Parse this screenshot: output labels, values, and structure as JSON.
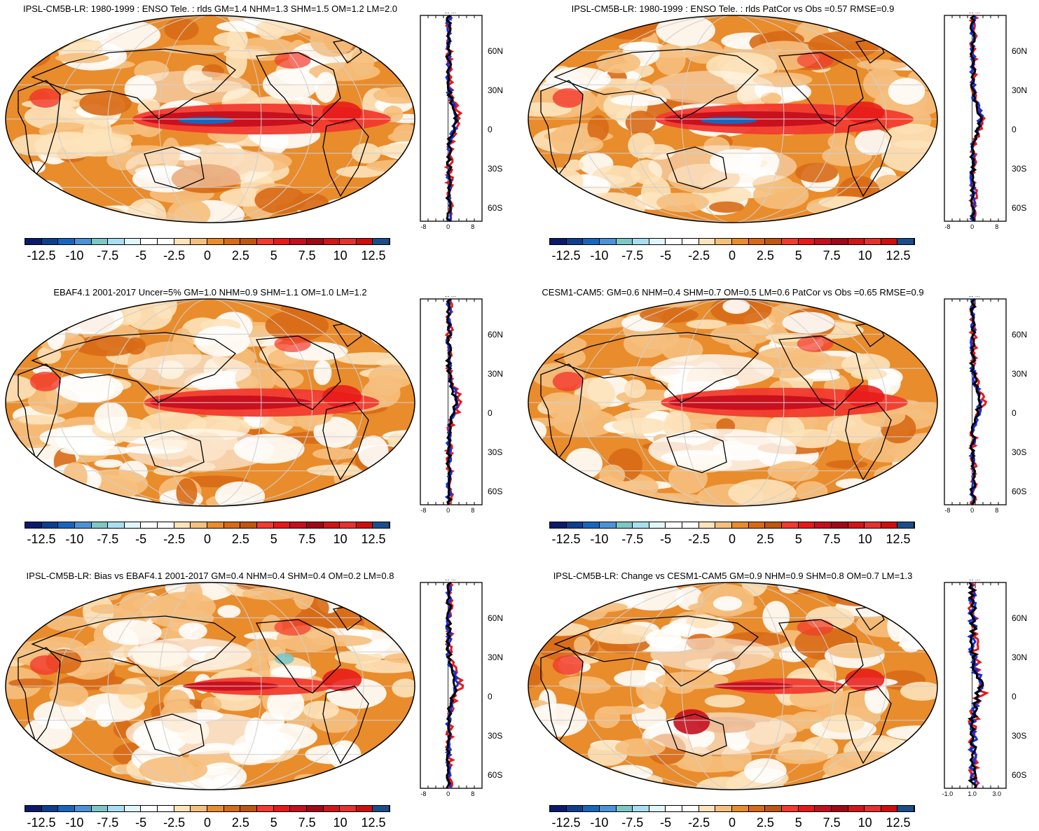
{
  "colorbar": {
    "colors": [
      "#0b1b6b",
      "#0d3f8f",
      "#1766bd",
      "#4b93d8",
      "#7ec7c7",
      "#a8dff0",
      "#e1f6fb",
      "#ffffff",
      "#ffffff",
      "#fde3bb",
      "#f6bf7d",
      "#e98c2c",
      "#d86a16",
      "#c05510",
      "#f23a2e",
      "#e81818",
      "#c50e1e",
      "#a00818",
      "#d11616",
      "#e53030",
      "#d00d0d",
      "#1b4d8a"
    ],
    "labels": [
      "-12.5",
      "-10",
      "-7.5",
      "-5",
      "-2.5",
      "0",
      "2.5",
      "5",
      "7.5",
      "10",
      "12.5"
    ]
  },
  "panels": [
    {
      "title": "IPSL-CM5B-LR: 1980-1999 : ENSO Tele. : rlds GM=1.4 NHM=1.3 SHM=1.5 OM=1.2 LM=2.0",
      "profile_unit": "W m⁻²",
      "profile_xticks": [
        "-8",
        "0",
        "8"
      ],
      "profile_yticks": [
        "60N",
        "30N",
        "0",
        "30S",
        "60S"
      ]
    },
    {
      "title": "IPSL-CM5B-LR: 1980-1999 : ENSO Tele. : rlds PatCor vs Obs =0.57 RMSE=0.9",
      "profile_unit": "W m⁻²",
      "profile_xticks": [
        "-8",
        "0",
        "8"
      ],
      "profile_yticks": [
        "60N",
        "30N",
        "0",
        "30S",
        "60S"
      ]
    },
    {
      "title": "EBAF4.1 2001-2017 Uncer=5% GM=1.0 NHM=0.9 SHM=1.1 OM=1.0 LM=1.2",
      "profile_unit": "W m⁻²",
      "profile_xticks": [
        "-8",
        "0",
        "8"
      ],
      "profile_yticks": [
        "60N",
        "30N",
        "0",
        "30S",
        "60S"
      ]
    },
    {
      "title": "CESM1-CAM5: GM=0.6 NHM=0.4 SHM=0.7 OM=0.5 LM=0.6 PatCor vs Obs =0.65 RMSE=0.9",
      "profile_unit": "W m⁻²",
      "profile_xticks": [
        "-8",
        "0",
        "8"
      ],
      "profile_yticks": [
        "60N",
        "30N",
        "0",
        "30S",
        "60S"
      ]
    },
    {
      "title": "IPSL-CM5B-LR: Bias vs EBAF4.1 2001-2017 GM=0.4 NHM=0.4 SHM=0.4 OM=0.2 LM=0.8",
      "profile_unit": "W m⁻²",
      "profile_xticks": [
        "-8",
        "0",
        "8"
      ],
      "profile_yticks": [
        "60N",
        "30N",
        "0",
        "30S",
        "60S"
      ]
    },
    {
      "title": "IPSL-CM5B-LR: Change vs CESM1-CAM5 GM=0.9 NHM=0.9 SHM=0.8 OM=0.7 LM=1.3",
      "profile_unit": "W m⁻²",
      "profile_xticks": [
        "-1.0",
        "1.0",
        "3.0"
      ],
      "profile_yticks": [
        "60N",
        "30N",
        "0",
        "30S",
        "60S"
      ]
    }
  ]
}
